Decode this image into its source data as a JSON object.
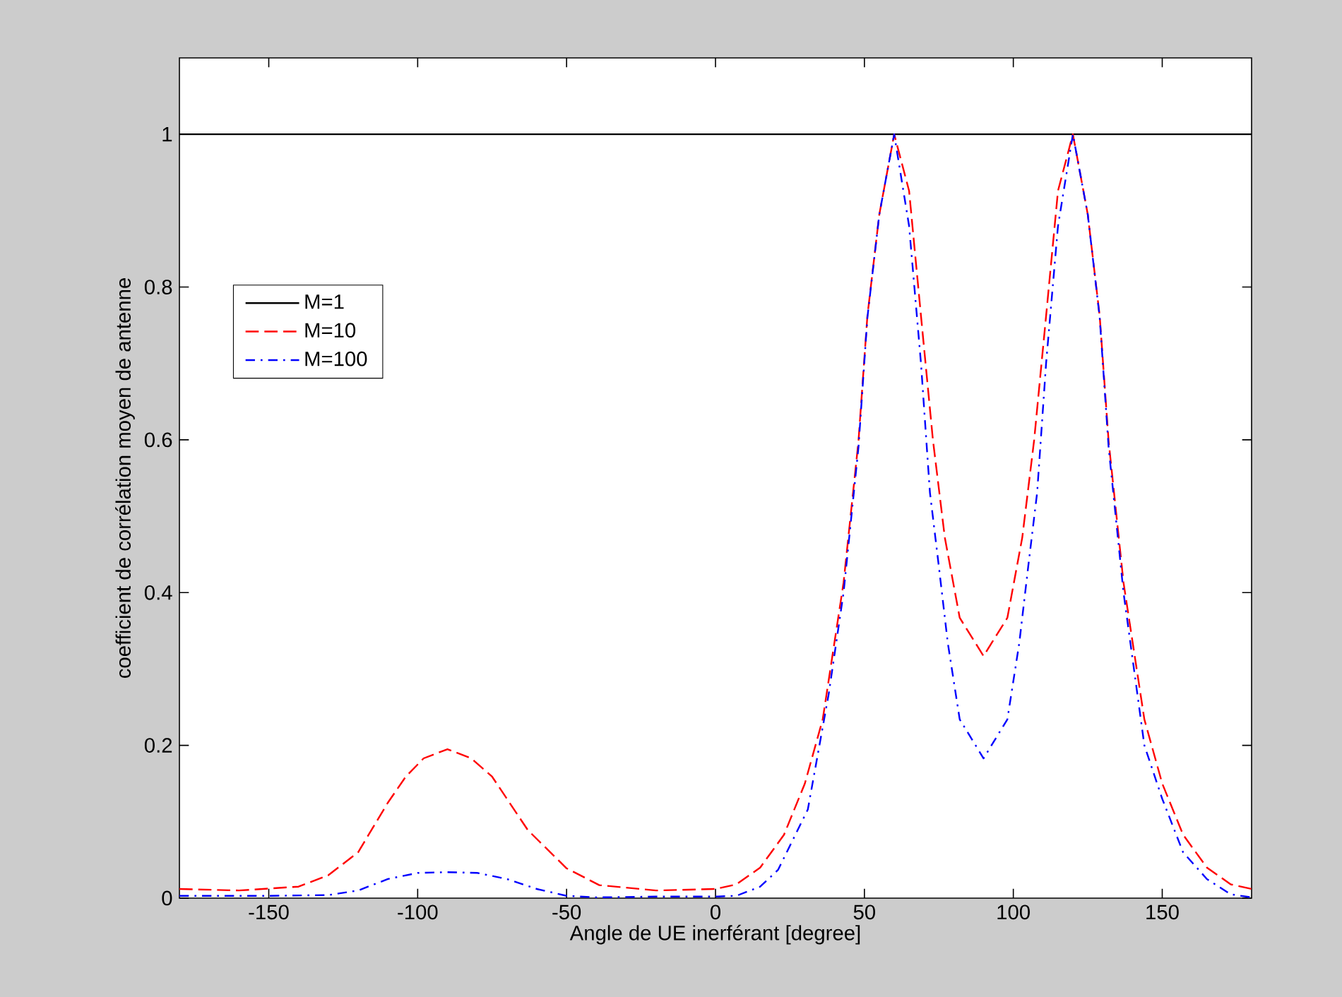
{
  "chart_data": {
    "type": "line",
    "xlabel": "Angle de UE inerférant [degree]",
    "ylabel": "coefficient de corrélation moyen de antenne",
    "xlim": [
      -180,
      180
    ],
    "ylim": [
      0,
      1.1
    ],
    "xticks": [
      -150,
      -100,
      -50,
      0,
      50,
      100,
      150
    ],
    "yticks": [
      0,
      0.2,
      0.4,
      0.6,
      0.8,
      1
    ],
    "grid": false,
    "legend": "top left",
    "series": [
      {
        "name": "M=1",
        "color": "#000000",
        "line_style": "solid",
        "x": [
          -180,
          180
        ],
        "values": [
          1,
          1
        ]
      },
      {
        "name": "M=10",
        "color": "#ff0000",
        "line_style": "dashed",
        "x": [
          -180,
          -160,
          -140,
          -130,
          -120,
          -110,
          -104,
          -98,
          -90,
          -82,
          -75,
          -63,
          -50,
          -39,
          -20,
          0,
          7,
          15,
          23,
          30,
          36,
          43,
          48,
          51,
          55,
          60,
          65,
          69,
          73,
          77,
          82,
          90,
          98,
          103,
          107,
          111,
          115,
          120,
          125,
          129,
          132,
          137,
          144,
          150,
          157,
          165,
          173,
          180
        ],
        "values": [
          0.012,
          0.01,
          0.015,
          0.03,
          0.06,
          0.125,
          0.159,
          0.183,
          0.195,
          0.183,
          0.159,
          0.089,
          0.039,
          0.017,
          0.01,
          0.012,
          0.018,
          0.04,
          0.083,
          0.15,
          0.234,
          0.413,
          0.598,
          0.762,
          0.895,
          1,
          0.926,
          0.762,
          0.6,
          0.472,
          0.367,
          0.317,
          0.367,
          0.472,
          0.6,
          0.762,
          0.926,
          1,
          0.895,
          0.762,
          0.598,
          0.413,
          0.234,
          0.15,
          0.083,
          0.04,
          0.018,
          0.012
        ]
      },
      {
        "name": "M=100",
        "color": "#0000ff",
        "line_style": "dashdot",
        "x": [
          -180,
          -150,
          -130,
          -120,
          -110,
          -100,
          -90,
          -80,
          -70,
          -60,
          -50,
          -40,
          -20,
          0,
          7,
          15,
          21,
          31,
          38,
          43,
          48,
          51,
          55,
          60,
          65,
          69,
          72,
          75,
          78,
          82,
          90,
          98,
          102,
          105,
          108,
          111,
          115,
          120,
          125,
          129,
          132,
          137,
          144,
          150,
          157,
          165,
          173,
          180
        ],
        "values": [
          0.003,
          0.003,
          0.004,
          0.01,
          0.025,
          0.033,
          0.034,
          0.033,
          0.025,
          0.012,
          0.003,
          0.001,
          0.002,
          0.002,
          0.003,
          0.015,
          0.037,
          0.116,
          0.267,
          0.4,
          0.59,
          0.76,
          0.895,
          1,
          0.88,
          0.7,
          0.531,
          0.434,
          0.334,
          0.234,
          0.183,
          0.234,
          0.334,
          0.434,
          0.531,
          0.7,
          0.88,
          1,
          0.895,
          0.76,
          0.59,
          0.4,
          0.2,
          0.13,
          0.06,
          0.025,
          0.005,
          0.001
        ]
      }
    ]
  }
}
